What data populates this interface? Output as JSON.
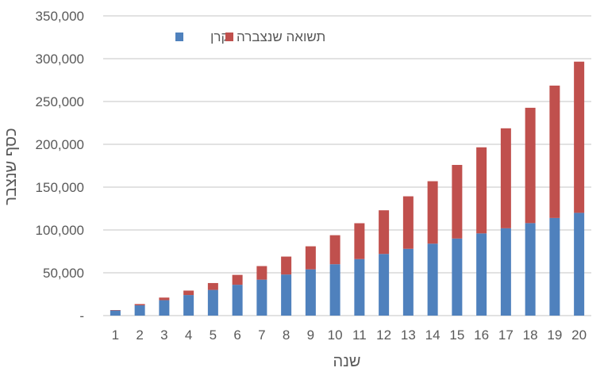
{
  "chart_data": {
    "type": "bar",
    "stacked": true,
    "title": "",
    "xlabel": "שנה",
    "ylabel": "כסף שנצבר",
    "ylim": [
      0,
      350000
    ],
    "yticks": [
      "-",
      "50,000",
      "100,000",
      "150,000",
      "200,000",
      "250,000",
      "300,000",
      "350,000"
    ],
    "ytick_values": [
      0,
      50000,
      100000,
      150000,
      200000,
      250000,
      300000,
      350000
    ],
    "grid": true,
    "legend_placement": "top-left",
    "categories": [
      "1",
      "2",
      "3",
      "4",
      "5",
      "6",
      "7",
      "8",
      "9",
      "10",
      "11",
      "12",
      "13",
      "14",
      "15",
      "16",
      "17",
      "18",
      "19",
      "20"
    ],
    "series": [
      {
        "name": "קרן",
        "color": "#4f81bd",
        "values": [
          6000,
          12000,
          18000,
          24000,
          30000,
          36000,
          42000,
          48000,
          54000,
          60000,
          66000,
          72000,
          78000,
          84000,
          90000,
          96000,
          102000,
          108000,
          114000,
          120000
        ]
      },
      {
        "name": "תשואה שנצברה",
        "color": "#c0504d",
        "values": [
          480,
          1478,
          3037,
          5200,
          8016,
          11537,
          15820,
          20925,
          26920,
          33873,
          41863,
          50972,
          61290,
          72913,
          85946,
          100501,
          116701,
          134677,
          154572,
          176538
        ]
      }
    ]
  }
}
